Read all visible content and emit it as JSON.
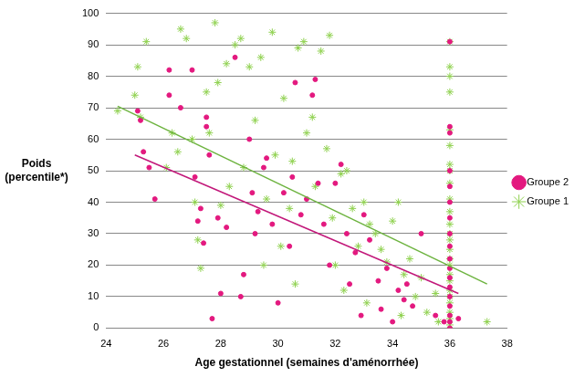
{
  "chart_data": {
    "type": "scatter",
    "x_label": "Age gestationnel (semaines d'aménorrhée)",
    "y_label": [
      "Poids",
      "(percentile*)"
    ],
    "xlim": [
      24,
      38
    ],
    "xticks": [
      24,
      26,
      28,
      30,
      32,
      34,
      36,
      38
    ],
    "ylim": [
      0,
      100
    ],
    "yticks": [
      0,
      10,
      20,
      30,
      40,
      50,
      60,
      70,
      80,
      90,
      100
    ],
    "grid": true,
    "legend": "right",
    "series": [
      {
        "name": "Groupe 2",
        "color": "#e3197f",
        "marker": "circle",
        "x": [
          25.1,
          25.2,
          25.3,
          25.5,
          25.7,
          26.2,
          26.2,
          26.6,
          27.0,
          27.1,
          27.2,
          27.3,
          27.4,
          27.5,
          27.5,
          27.6,
          27.7,
          27.9,
          28.0,
          28.2,
          28.5,
          28.7,
          28.8,
          29.0,
          29.1,
          29.2,
          29.3,
          29.5,
          29.6,
          29.8,
          30.0,
          30.2,
          30.4,
          30.5,
          30.6,
          30.8,
          31.0,
          31.2,
          31.3,
          31.4,
          31.6,
          31.8,
          32.0,
          32.2,
          32.4,
          32.5,
          32.7,
          32.9,
          33.0,
          33.2,
          33.5,
          33.6,
          33.8,
          34.0,
          34.2,
          34.4,
          34.5,
          34.7,
          35.0,
          35.5,
          35.8,
          36,
          36,
          36,
          36,
          36,
          36,
          36,
          36,
          36,
          36,
          36,
          36,
          36,
          36,
          36,
          36,
          36,
          36,
          36.3
        ],
        "values": [
          69,
          66,
          56,
          51,
          41,
          82,
          74,
          70,
          82,
          48,
          34,
          38,
          27,
          64,
          67,
          55,
          3,
          35,
          11,
          32,
          86,
          10,
          17,
          60,
          43,
          30,
          37,
          51,
          54,
          33,
          8,
          43,
          26,
          48,
          78,
          36,
          41,
          74,
          79,
          46,
          33,
          20,
          46,
          52,
          30,
          14,
          24,
          4,
          36,
          28,
          15,
          6,
          19,
          2,
          12,
          9,
          14,
          7,
          30,
          4,
          2,
          91,
          64,
          62,
          50,
          45,
          40,
          35,
          30,
          26,
          22,
          19,
          16,
          13,
          10,
          7,
          4,
          2,
          0,
          3
        ],
        "trend": {
          "x": [
            25.0,
            36.3
          ],
          "values": [
            55,
            11
          ],
          "color": "#c2187a",
          "line_style": "solid"
        }
      },
      {
        "name": "Groupe 1",
        "color": "#8fd14f",
        "marker": "star",
        "x": [
          24.4,
          25.1,
          25.4,
          25.0,
          25.2,
          26.1,
          26.3,
          26.6,
          26.8,
          26.5,
          27.0,
          27.1,
          27.2,
          27.3,
          27.5,
          27.6,
          27.8,
          27.9,
          28.2,
          28.5,
          28.7,
          28.3,
          28.0,
          28.8,
          29.0,
          29.2,
          29.4,
          29.6,
          29.5,
          29.8,
          29.9,
          30.2,
          30.5,
          30.7,
          30.9,
          30.4,
          30.1,
          30.6,
          31.0,
          31.2,
          31.5,
          31.7,
          31.8,
          31.3,
          31.9,
          32.0,
          32.2,
          32.4,
          32.6,
          32.8,
          32.3,
          33.0,
          33.2,
          33.4,
          33.6,
          33.1,
          33.8,
          34.0,
          34.2,
          34.4,
          34.6,
          34.8,
          34.3,
          35.0,
          35.2,
          35.5,
          35.6,
          36,
          36,
          36,
          36,
          36,
          36,
          36,
          36,
          36,
          36,
          36,
          36,
          36,
          36,
          36,
          36,
          36,
          36,
          36,
          36,
          36,
          36,
          36,
          36,
          36,
          37.3
        ],
        "values": [
          69,
          83,
          91,
          74,
          67,
          51,
          62,
          95,
          92,
          56,
          60,
          40,
          28,
          19,
          75,
          62,
          97,
          78,
          84,
          90,
          92,
          45,
          39,
          51,
          83,
          66,
          86,
          41,
          20,
          94,
          55,
          73,
          53,
          89,
          91,
          38,
          26,
          14,
          62,
          67,
          88,
          57,
          93,
          45,
          35,
          20,
          49,
          50,
          38,
          26,
          12,
          40,
          33,
          30,
          25,
          8,
          21,
          34,
          40,
          17,
          22,
          10,
          4,
          16,
          5,
          11,
          2,
          91,
          83,
          80,
          75,
          63,
          58,
          52,
          50,
          46,
          41,
          37,
          33,
          30,
          28,
          25,
          22,
          20,
          17,
          15,
          12,
          10,
          8,
          5,
          3,
          1,
          2
        ],
        "trend": {
          "x": [
            24.4,
            37.3
          ],
          "values": [
            70.5,
            14
          ],
          "color": "#6db33f",
          "line_style": "solid"
        }
      }
    ]
  }
}
